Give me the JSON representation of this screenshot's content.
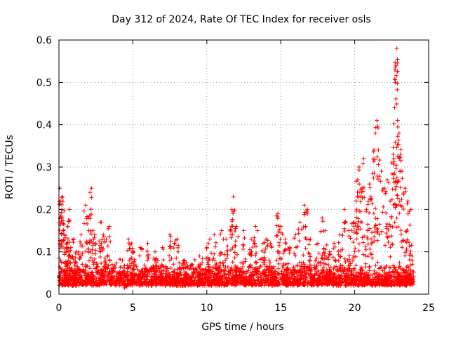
{
  "chart_data": {
    "type": "scatter",
    "title": "Day 312 of 2024, Rate Of TEC Index for receiver osls",
    "xlabel": "GPS time / hours",
    "ylabel": "ROTI / TECUs",
    "xlim": [
      0,
      25
    ],
    "ylim": [
      0,
      0.6
    ],
    "xticks": [
      0,
      5,
      10,
      15,
      20,
      25
    ],
    "yticks": [
      0,
      0.1,
      0.2,
      0.3,
      0.4,
      0.5,
      0.6
    ],
    "xtick_labels": [
      "0",
      "5",
      "10",
      "15",
      "20",
      "25"
    ],
    "ytick_labels": [
      "0",
      "0.1",
      "0.2",
      "0.3",
      "0.4",
      "0.5",
      "0.6"
    ],
    "grid": true,
    "marker": "+",
    "color": "#ff0000",
    "series": [
      {
        "name": "ROTI",
        "points": [
          [
            0.05,
            0.25
          ],
          [
            0.1,
            0.22
          ],
          [
            0.2,
            0.2
          ],
          [
            0.25,
            0.23
          ],
          [
            0.3,
            0.15
          ],
          [
            0.4,
            0.14
          ],
          [
            0.5,
            0.12
          ],
          [
            0.6,
            0.16
          ],
          [
            0.7,
            0.2
          ],
          [
            0.8,
            0.11
          ],
          [
            1.0,
            0.13
          ],
          [
            1.2,
            0.1
          ],
          [
            1.5,
            0.14
          ],
          [
            1.8,
            0.21
          ],
          [
            2.0,
            0.18
          ],
          [
            2.1,
            0.24
          ],
          [
            2.2,
            0.25
          ],
          [
            2.3,
            0.15
          ],
          [
            2.5,
            0.12
          ],
          [
            2.8,
            0.17
          ],
          [
            3.0,
            0.14
          ],
          [
            3.2,
            0.13
          ],
          [
            3.4,
            0.16
          ],
          [
            3.6,
            0.07
          ],
          [
            4.0,
            0.05
          ],
          [
            4.5,
            0.04
          ],
          [
            4.7,
            0.13
          ],
          [
            4.9,
            0.12
          ],
          [
            5.0,
            0.1
          ],
          [
            5.5,
            0.11
          ],
          [
            6.0,
            0.12
          ],
          [
            6.5,
            0.1
          ],
          [
            7.0,
            0.11
          ],
          [
            7.5,
            0.14
          ],
          [
            7.8,
            0.12
          ],
          [
            8.0,
            0.13
          ],
          [
            8.5,
            0.08
          ],
          [
            9.0,
            0.07
          ],
          [
            9.5,
            0.09
          ],
          [
            10.0,
            0.11
          ],
          [
            10.2,
            0.13
          ],
          [
            10.5,
            0.14
          ],
          [
            11.0,
            0.15
          ],
          [
            11.3,
            0.13
          ],
          [
            11.7,
            0.2
          ],
          [
            11.8,
            0.23
          ],
          [
            12.0,
            0.16
          ],
          [
            12.5,
            0.15
          ],
          [
            13.0,
            0.13
          ],
          [
            13.3,
            0.16
          ],
          [
            13.8,
            0.12
          ],
          [
            14.0,
            0.13
          ],
          [
            14.3,
            0.12
          ],
          [
            14.8,
            0.19
          ],
          [
            15.0,
            0.16
          ],
          [
            15.3,
            0.13
          ],
          [
            15.6,
            0.11
          ],
          [
            16.0,
            0.14
          ],
          [
            16.3,
            0.17
          ],
          [
            16.6,
            0.21
          ],
          [
            16.8,
            0.2
          ],
          [
            17.0,
            0.13
          ],
          [
            17.5,
            0.12
          ],
          [
            17.8,
            0.18
          ],
          [
            18.0,
            0.15
          ],
          [
            18.3,
            0.1
          ],
          [
            18.6,
            0.12
          ],
          [
            19.0,
            0.14
          ],
          [
            19.3,
            0.2
          ],
          [
            19.6,
            0.15
          ],
          [
            19.9,
            0.17
          ],
          [
            20.1,
            0.22
          ],
          [
            20.2,
            0.27
          ],
          [
            20.3,
            0.3
          ],
          [
            20.5,
            0.25
          ],
          [
            20.6,
            0.32
          ],
          [
            20.8,
            0.2
          ],
          [
            21.0,
            0.26
          ],
          [
            21.1,
            0.23
          ],
          [
            21.3,
            0.34
          ],
          [
            21.4,
            0.38
          ],
          [
            21.5,
            0.41
          ],
          [
            21.6,
            0.34
          ],
          [
            21.8,
            0.29
          ],
          [
            22.0,
            0.25
          ],
          [
            22.2,
            0.27
          ],
          [
            22.4,
            0.22
          ],
          [
            22.5,
            0.31
          ],
          [
            22.6,
            0.33
          ],
          [
            22.7,
            0.44
          ],
          [
            22.75,
            0.5
          ],
          [
            22.8,
            0.54
          ],
          [
            22.85,
            0.58
          ],
          [
            22.9,
            0.41
          ],
          [
            23.0,
            0.38
          ],
          [
            23.1,
            0.33
          ],
          [
            23.2,
            0.29
          ],
          [
            23.4,
            0.25
          ],
          [
            23.6,
            0.22
          ],
          [
            23.8,
            0.2
          ]
        ]
      }
    ]
  }
}
